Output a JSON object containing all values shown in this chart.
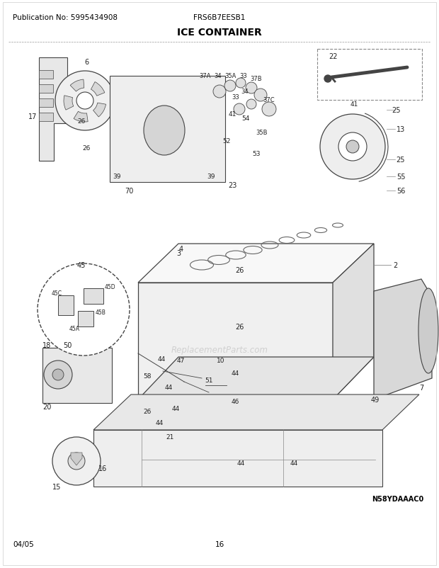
{
  "pub_no": "Publication No: 5995434908",
  "model": "FRS6B7EESB1",
  "section_title": "ICE CONTAINER",
  "diagram_code": "N58YDAAAC0",
  "date": "04/05",
  "page": "16",
  "bg_color": "#ffffff",
  "text_color": "#000000",
  "title_fontsize": 9,
  "header_fontsize": 7.5,
  "footer_fontsize": 7.5,
  "border_color": "#aaaaaa",
  "fig_width": 6.2,
  "fig_height": 8.03,
  "dpi": 100,
  "watermark": "ReplacementParts.com"
}
